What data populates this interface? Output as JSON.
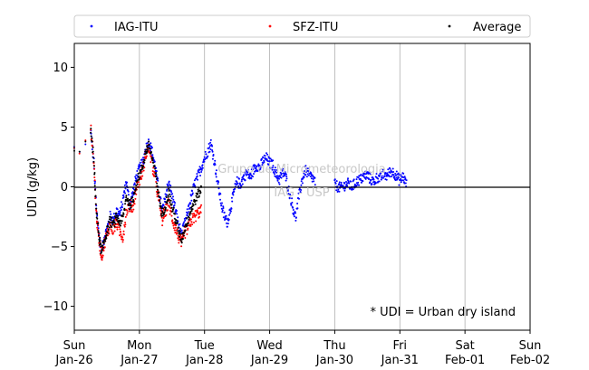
{
  "chart_data": {
    "type": "scatter",
    "ylabel": "UDI (g/kg)",
    "ylim": [
      -12,
      12
    ],
    "yticks": [
      -10,
      -5,
      0,
      5,
      10
    ],
    "xlim_days": [
      0,
      7
    ],
    "xticks": [
      {
        "day": "Sun",
        "date": "Jan-26"
      },
      {
        "day": "Mon",
        "date": "Jan-27"
      },
      {
        "day": "Tue",
        "date": "Jan-28"
      },
      {
        "day": "Wed",
        "date": "Jan-29"
      },
      {
        "day": "Thu",
        "date": "Jan-30"
      },
      {
        "day": "Fri",
        "date": "Jan-31"
      },
      {
        "day": "Sat",
        "date": "Feb-01"
      },
      {
        "day": "Sun",
        "date": "Feb-02"
      }
    ],
    "grid": "vertical",
    "zero_line": true,
    "legend_position": "top",
    "annotation": "* UDI = Urban dry island",
    "watermark": [
      "Grupo de Micrometeorologia",
      "IAG - USP"
    ],
    "series": [
      {
        "name": "IAG-ITU",
        "color": "#0000ff",
        "x": [
          0.0,
          0.08,
          0.17,
          0.25,
          0.3,
          0.34,
          0.38,
          0.42,
          0.46,
          0.5,
          0.55,
          0.6,
          0.65,
          0.7,
          0.75,
          0.8,
          0.85,
          0.9,
          0.95,
          1.0,
          1.05,
          1.1,
          1.15,
          1.2,
          1.25,
          1.3,
          1.35,
          1.4,
          1.45,
          1.5,
          1.55,
          1.6,
          1.65,
          1.7,
          1.75,
          1.8,
          1.85,
          1.9,
          1.95,
          2.0,
          2.05,
          2.1,
          2.15,
          2.2,
          2.25,
          2.3,
          2.35,
          2.4,
          2.45,
          2.5,
          2.55,
          2.6,
          2.65,
          2.7,
          2.75,
          2.8,
          2.85,
          2.9,
          2.95,
          3.0,
          3.05,
          3.1,
          3.15,
          3.2,
          3.25,
          3.3,
          3.35,
          3.4,
          3.45,
          3.5,
          3.55,
          3.6,
          3.65,
          3.7,
          4.0,
          4.05,
          4.1,
          4.15,
          4.2,
          4.25,
          4.3,
          4.35,
          4.4,
          4.45,
          4.5,
          4.55,
          4.6,
          4.65,
          4.7,
          4.75,
          4.8,
          4.85,
          4.9,
          4.95,
          5.0,
          5.05,
          5.1
        ],
        "y": [
          3.2,
          2.8,
          3.4,
          4.8,
          2.0,
          -2.0,
          -4.0,
          -5.5,
          -4.2,
          -3.6,
          -2.5,
          -2.8,
          -2.0,
          -2.4,
          -1.0,
          0.5,
          -1.5,
          -0.5,
          0.8,
          1.5,
          2.0,
          3.2,
          3.8,
          2.8,
          1.5,
          -0.5,
          -2.0,
          -1.0,
          0.5,
          -0.8,
          -1.8,
          -3.2,
          -4.0,
          -3.0,
          -2.0,
          -0.8,
          0.2,
          0.9,
          1.6,
          2.4,
          3.0,
          3.6,
          2.2,
          0.5,
          -1.2,
          -2.4,
          -3.0,
          -1.8,
          -0.5,
          0.4,
          0.2,
          0.8,
          1.2,
          0.8,
          1.4,
          1.8,
          1.6,
          2.2,
          2.4,
          2.0,
          1.8,
          1.0,
          0.6,
          1.2,
          0.8,
          -0.4,
          -1.6,
          -2.6,
          -0.8,
          0.6,
          1.4,
          1.0,
          0.8,
          0.4,
          0.2,
          0.0,
          -0.1,
          0.1,
          0.3,
          0.0,
          0.2,
          0.5,
          0.6,
          0.9,
          1.0,
          0.6,
          0.4,
          0.8,
          0.7,
          1.1,
          0.9,
          1.3,
          1.2,
          0.9,
          0.5,
          0.9,
          0.2
        ],
        "spread": 0.45
      },
      {
        "name": "SFZ-ITU",
        "color": "#ff0000",
        "x": [
          0.0,
          0.08,
          0.17,
          0.25,
          0.3,
          0.34,
          0.38,
          0.42,
          0.46,
          0.5,
          0.55,
          0.6,
          0.65,
          0.7,
          0.75,
          0.8,
          0.85,
          0.9,
          0.95,
          1.0,
          1.05,
          1.1,
          1.15,
          1.2,
          1.25,
          1.3,
          1.35,
          1.4,
          1.45,
          1.5,
          1.55,
          1.6,
          1.65,
          1.7,
          1.75,
          1.8,
          1.85,
          1.9,
          1.95
        ],
        "y": [
          3.3,
          3.0,
          3.5,
          5.0,
          2.2,
          -2.4,
          -4.5,
          -5.8,
          -4.8,
          -4.0,
          -3.2,
          -3.6,
          -3.0,
          -3.8,
          -4.2,
          -2.0,
          -1.5,
          -1.8,
          -0.2,
          0.5,
          1.4,
          2.8,
          3.2,
          1.8,
          0.4,
          -1.2,
          -2.8,
          -2.0,
          -1.4,
          -2.6,
          -3.4,
          -4.2,
          -4.8,
          -3.8,
          -3.4,
          -2.8,
          -2.5,
          -2.2,
          -2.0
        ],
        "spread": 0.5
      },
      {
        "name": "Average",
        "color": "#000000",
        "x": [
          0.0,
          0.08,
          0.17,
          0.25,
          0.3,
          0.34,
          0.38,
          0.42,
          0.46,
          0.5,
          0.55,
          0.6,
          0.65,
          0.7,
          0.75,
          0.8,
          0.85,
          0.9,
          0.95,
          1.0,
          1.05,
          1.1,
          1.15,
          1.2,
          1.25,
          1.3,
          1.35,
          1.4,
          1.45,
          1.5,
          1.55,
          1.6,
          1.65,
          1.7,
          1.75,
          1.8,
          1.85,
          1.9,
          1.95
        ],
        "y": [
          3.2,
          2.9,
          3.4,
          4.9,
          2.1,
          -2.2,
          -4.2,
          -5.6,
          -4.5,
          -3.8,
          -2.8,
          -3.2,
          -2.5,
          -3.0,
          -2.6,
          -0.8,
          -1.5,
          -1.2,
          0.3,
          1.0,
          1.7,
          3.0,
          3.5,
          2.3,
          1.0,
          -0.8,
          -2.4,
          -1.5,
          -0.5,
          -1.7,
          -2.6,
          -3.7,
          -4.4,
          -3.4,
          -2.7,
          -1.8,
          -1.2,
          -0.6,
          -0.2
        ],
        "spread": 0.4
      }
    ]
  }
}
